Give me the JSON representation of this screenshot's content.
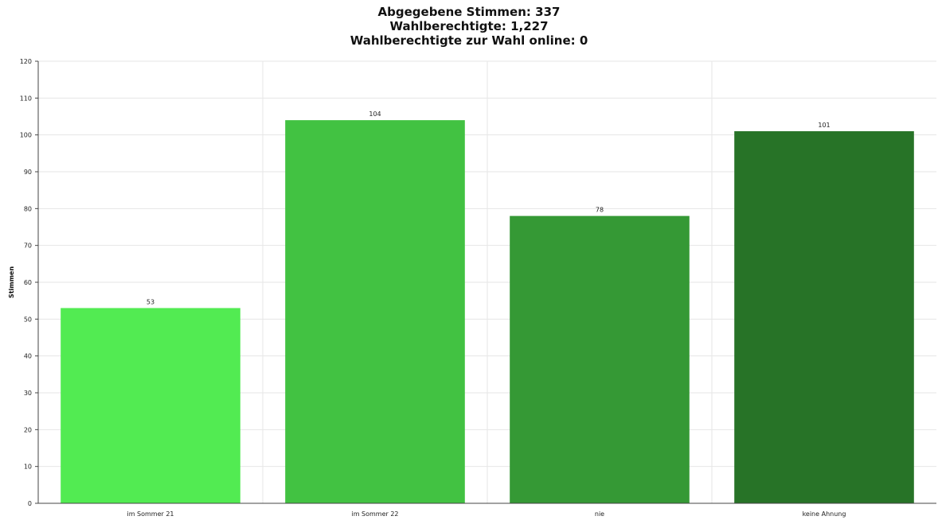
{
  "titles": {
    "line1": "Abgegebene Stimmen: 337",
    "line2": "Wahlberechtigte: 1,227",
    "line3": "Wahlberechtigte zur Wahl online: 0"
  },
  "chart_data": {
    "type": "bar",
    "categories": [
      "im Sommer 21",
      "im Sommer 22",
      "nie",
      "keine Ahnung"
    ],
    "values": [
      53,
      104,
      78,
      101
    ],
    "colors": [
      "#52eb52",
      "#42c242",
      "#359935",
      "#277327"
    ],
    "ylabel": "Stimmen",
    "xlabel": "",
    "ylim": [
      0,
      120
    ],
    "yticks": [
      0,
      10,
      20,
      30,
      40,
      50,
      60,
      70,
      80,
      90,
      100,
      110,
      120
    ],
    "grid": true,
    "data_labels": true
  }
}
